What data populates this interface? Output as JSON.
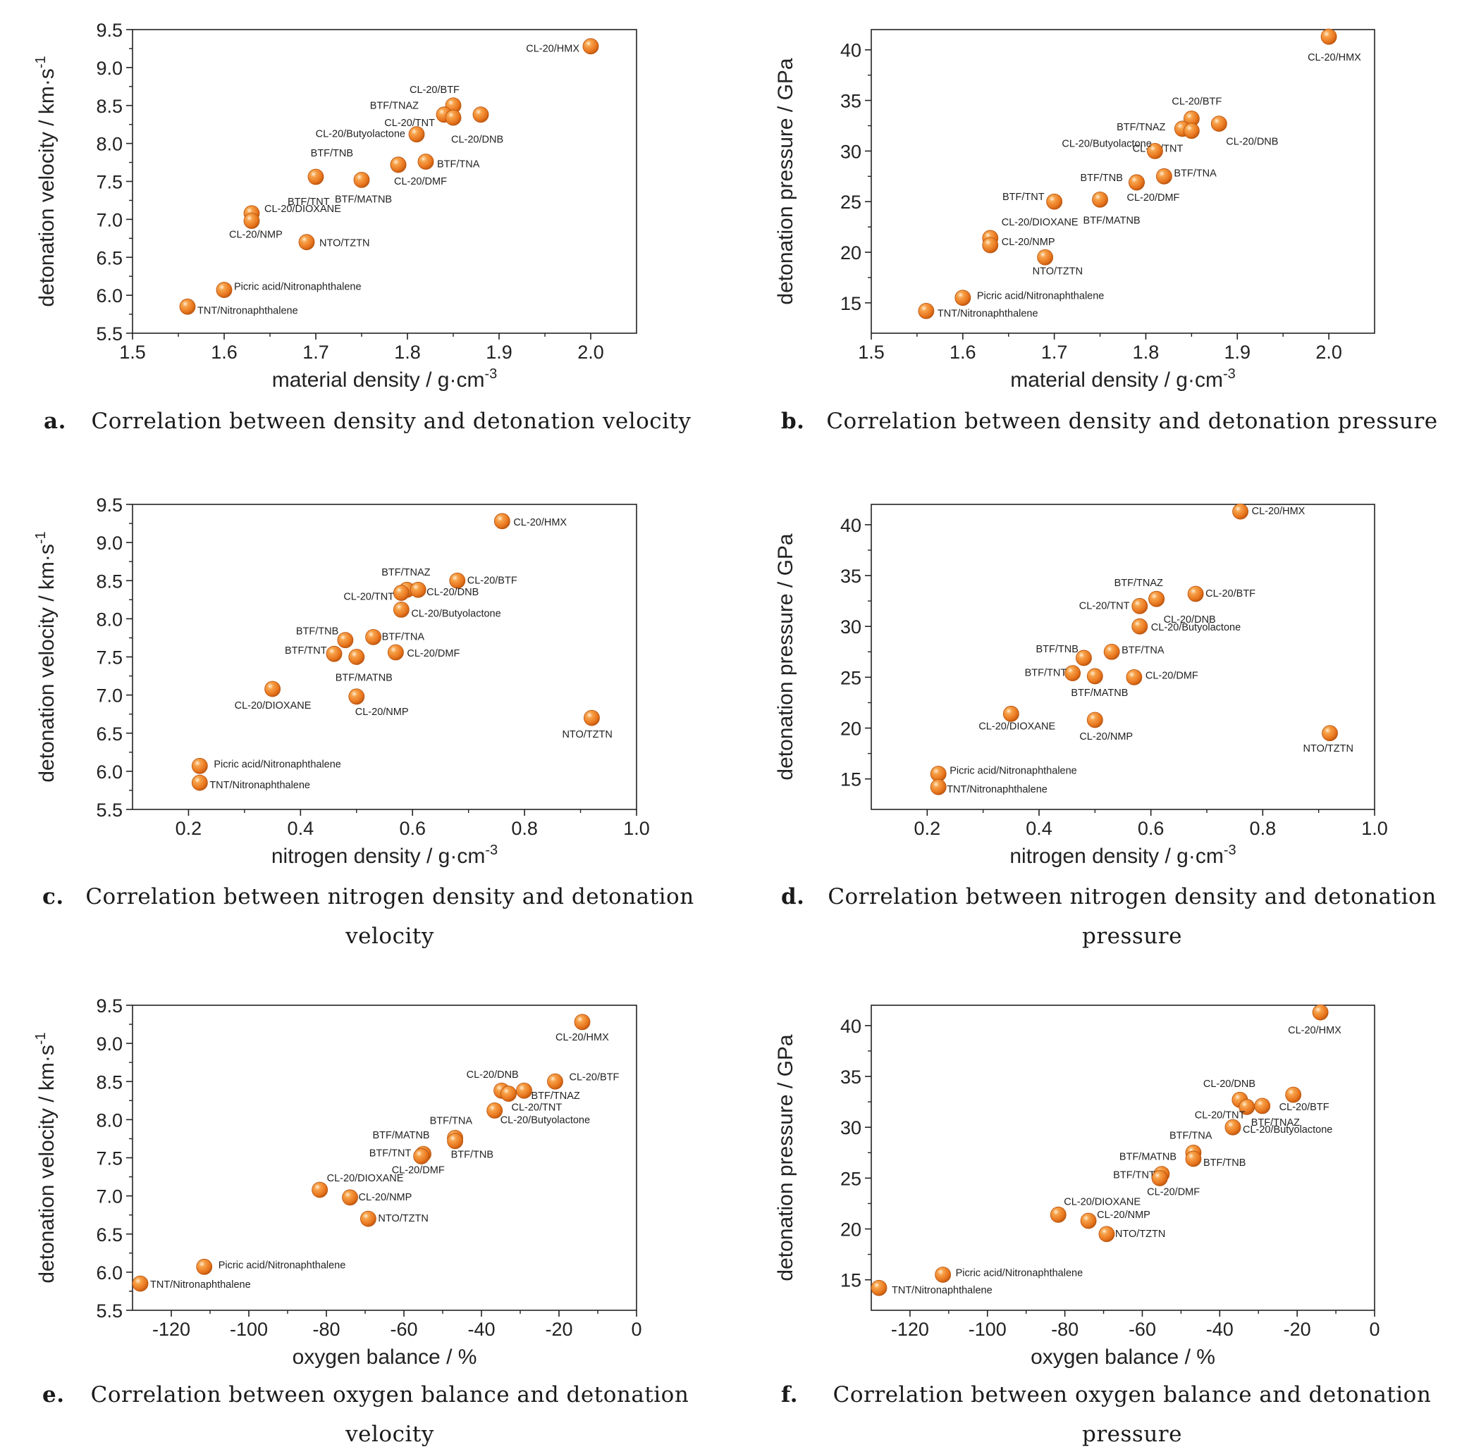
{
  "chart_data": [
    {
      "id": "a",
      "type": "scatter",
      "xlabel": "material  density / g·cm",
      "xlabel_sup": "-3",
      "ylabel": "detonation velocity / km·s",
      "ylabel_sup": "-1",
      "xlim": [
        1.5,
        2.05
      ],
      "ylim": [
        5.5,
        9.5
      ],
      "xticks": [
        "1.5",
        "1.6",
        "1.7",
        "1.8",
        "1.9",
        "2.0"
      ],
      "yticks": [
        "5.5",
        "6.0",
        "6.5",
        "7.0",
        "7.5",
        "8.0",
        "8.5",
        "9.0",
        "9.5"
      ],
      "points": [
        {
          "label": "CL-20/HMX",
          "x": 2.0,
          "y": 9.28
        },
        {
          "label": "CL-20/BTF",
          "x": 1.85,
          "y": 8.5
        },
        {
          "label": "BTF/TNAZ",
          "x": 1.84,
          "y": 8.38
        },
        {
          "label": "CL-20/TNT",
          "x": 1.85,
          "y": 8.34
        },
        {
          "label": "CL-20/DNB",
          "x": 1.88,
          "y": 8.38
        },
        {
          "label": "CL-20/Butyolactone",
          "x": 1.81,
          "y": 8.12
        },
        {
          "label": "BTF/TNB",
          "x": 1.79,
          "y": 7.72
        },
        {
          "label": "BTF/TNA",
          "x": 1.82,
          "y": 7.76
        },
        {
          "label": "CL-20/DMF",
          "x": 1.79,
          "y": 7.72
        },
        {
          "label": "BTF/TNT",
          "x": 1.7,
          "y": 7.56
        },
        {
          "label": "BTF/MATNB",
          "x": 1.75,
          "y": 7.52
        },
        {
          "label": "CL-20/DIOXANE",
          "x": 1.63,
          "y": 7.08
        },
        {
          "label": "CL-20/NMP",
          "x": 1.63,
          "y": 6.98
        },
        {
          "label": "NTO/TZTN",
          "x": 1.69,
          "y": 6.7
        },
        {
          "label": "Picric acid/Nitronaphthalene",
          "x": 1.6,
          "y": 6.07
        },
        {
          "label": "TNT/Nitronaphthalene",
          "x": 1.56,
          "y": 5.85
        }
      ]
    },
    {
      "id": "b",
      "type": "scatter",
      "xlabel": "material density / g·cm",
      "xlabel_sup": "-3",
      "ylabel": "detonation pressure / GPa",
      "ylabel_sup": "",
      "xlim": [
        1.5,
        2.05
      ],
      "ylim": [
        12,
        42
      ],
      "xticks": [
        "1.5",
        "1.6",
        "1.7",
        "1.8",
        "1.9",
        "2.0"
      ],
      "yticks": [
        "15",
        "20",
        "25",
        "30",
        "35",
        "40"
      ],
      "points": [
        {
          "label": "CL-20/HMX",
          "x": 2.0,
          "y": 41.3
        },
        {
          "label": "CL-20/BTF",
          "x": 1.85,
          "y": 33.2
        },
        {
          "label": "BTF/TNAZ",
          "x": 1.84,
          "y": 32.2
        },
        {
          "label": "CL-20/TNT",
          "x": 1.85,
          "y": 32.0
        },
        {
          "label": "CL-20/DNB",
          "x": 1.88,
          "y": 32.7
        },
        {
          "label": "CL-20/Butyolactone",
          "x": 1.81,
          "y": 30.0
        },
        {
          "label": "BTF/TNB",
          "x": 1.79,
          "y": 26.9
        },
        {
          "label": "BTF/TNA",
          "x": 1.82,
          "y": 27.5
        },
        {
          "label": "CL-20/DMF",
          "x": 1.79,
          "y": 26.9
        },
        {
          "label": "BTF/TNT",
          "x": 1.7,
          "y": 25.0
        },
        {
          "label": "BTF/MATNB",
          "x": 1.75,
          "y": 25.2
        },
        {
          "label": "CL-20/DIOXANE",
          "x": 1.63,
          "y": 21.4
        },
        {
          "label": "CL-20/NMP",
          "x": 1.63,
          "y": 20.7
        },
        {
          "label": "NTO/TZTN",
          "x": 1.69,
          "y": 19.5
        },
        {
          "label": "Picric acid/Nitronaphthalene",
          "x": 1.6,
          "y": 15.5
        },
        {
          "label": "TNT/Nitronaphthalene",
          "x": 1.56,
          "y": 14.2
        }
      ]
    },
    {
      "id": "c",
      "type": "scatter",
      "xlabel": "nitrogen density / g·cm",
      "xlabel_sup": "-3",
      "ylabel": "detonation velocity / km·s",
      "ylabel_sup": "-1",
      "xlim": [
        0.1,
        1.0
      ],
      "ylim": [
        5.5,
        9.5
      ],
      "xticks": [
        "0.2",
        "0.4",
        "0.6",
        "0.8",
        "1.0"
      ],
      "yticks": [
        "5.5",
        "6.0",
        "6.5",
        "7.0",
        "7.5",
        "8.0",
        "8.5",
        "9.0",
        "9.5"
      ],
      "points": [
        {
          "label": "CL-20/HMX",
          "x": 0.76,
          "y": 9.28
        },
        {
          "label": "BTF/TNAZ",
          "x": 0.59,
          "y": 8.38
        },
        {
          "label": "CL-20/BTF",
          "x": 0.68,
          "y": 8.5
        },
        {
          "label": "CL-20/TNT",
          "x": 0.58,
          "y": 8.34
        },
        {
          "label": "CL-20/DNB",
          "x": 0.61,
          "y": 8.38
        },
        {
          "label": "CL-20/Butyolactone",
          "x": 0.58,
          "y": 8.12
        },
        {
          "label": "BTF/TNB",
          "x": 0.48,
          "y": 7.72
        },
        {
          "label": "BTF/TNA",
          "x": 0.53,
          "y": 7.76
        },
        {
          "label": "BTF/TNT",
          "x": 0.46,
          "y": 7.54
        },
        {
          "label": "CL-20/DMF",
          "x": 0.57,
          "y": 7.56
        },
        {
          "label": "BTF/MATNB",
          "x": 0.5,
          "y": 7.5
        },
        {
          "label": "CL-20/DIOXANE",
          "x": 0.35,
          "y": 7.08
        },
        {
          "label": "CL-20/NMP",
          "x": 0.5,
          "y": 6.98
        },
        {
          "label": "NTO/TZTN",
          "x": 0.92,
          "y": 6.7
        },
        {
          "label": "Picric acid/Nitronaphthalene",
          "x": 0.22,
          "y": 6.07
        },
        {
          "label": "TNT/Nitronaphthalene",
          "x": 0.22,
          "y": 5.85
        }
      ]
    },
    {
      "id": "d",
      "type": "scatter",
      "xlabel": "nitrogen  density / g·cm",
      "xlabel_sup": "-3",
      "ylabel": "detonation pressure / GPa",
      "ylabel_sup": "",
      "xlim": [
        0.1,
        1.0
      ],
      "ylim": [
        12,
        42
      ],
      "xticks": [
        "0.2",
        "0.4",
        "0.6",
        "0.8",
        "1.0"
      ],
      "yticks": [
        "15",
        "20",
        "25",
        "30",
        "35",
        "40"
      ],
      "points": [
        {
          "label": "CL-20/HMX",
          "x": 0.76,
          "y": 41.3
        },
        {
          "label": "BTF/TNAZ",
          "x": 0.61,
          "y": 32.7
        },
        {
          "label": "CL-20/BTF",
          "x": 0.68,
          "y": 33.2
        },
        {
          "label": "CL-20/TNT",
          "x": 0.58,
          "y": 32.0
        },
        {
          "label": "CL-20/DNB",
          "x": 0.61,
          "y": 32.7
        },
        {
          "label": "CL-20/Butyolactone",
          "x": 0.58,
          "y": 30.0
        },
        {
          "label": "BTF/TNB",
          "x": 0.48,
          "y": 26.9
        },
        {
          "label": "BTF/TNA",
          "x": 0.53,
          "y": 27.5
        },
        {
          "label": "BTF/TNT",
          "x": 0.46,
          "y": 25.4
        },
        {
          "label": "CL-20/DMF",
          "x": 0.57,
          "y": 25.0
        },
        {
          "label": "BTF/MATNB",
          "x": 0.5,
          "y": 25.1
        },
        {
          "label": "CL-20/DIOXANE",
          "x": 0.35,
          "y": 21.4
        },
        {
          "label": "CL-20/NMP",
          "x": 0.5,
          "y": 20.8
        },
        {
          "label": "NTO/TZTN",
          "x": 0.92,
          "y": 19.5
        },
        {
          "label": "Picric acid/Nitronaphthalene",
          "x": 0.22,
          "y": 15.5
        },
        {
          "label": "TNT/Nitronaphthalene",
          "x": 0.22,
          "y": 14.2
        }
      ]
    },
    {
      "id": "e",
      "type": "scatter",
      "xlabel": "oxygen balance / %",
      "xlabel_sup": "",
      "ylabel": "detonation velocity / km·s",
      "ylabel_sup": "-1",
      "xlim": [
        -130,
        0
      ],
      "ylim": [
        5.5,
        9.5
      ],
      "xticks": [
        "-120",
        "-100",
        "-80",
        "-60",
        "-40",
        "-20",
        "0"
      ],
      "yticks": [
        "5.5",
        "6.0",
        "6.5",
        "7.0",
        "7.5",
        "8.0",
        "8.5",
        "9.0",
        "9.5"
      ],
      "points": [
        {
          "label": "CL-20/HMX",
          "x": -14,
          "y": 9.28
        },
        {
          "label": "CL-20/DNB",
          "x": -34.8,
          "y": 8.38
        },
        {
          "label": "CL-20/BTF",
          "x": -21,
          "y": 8.5
        },
        {
          "label": "BTF/TNAZ",
          "x": -29,
          "y": 8.38
        },
        {
          "label": "CL-20/TNT",
          "x": -33,
          "y": 8.34
        },
        {
          "label": "CL-20/Butyolactone",
          "x": -36.6,
          "y": 8.12
        },
        {
          "label": "BTF/TNA",
          "x": -46.8,
          "y": 7.76
        },
        {
          "label": "BTF/TNB",
          "x": -46.8,
          "y": 7.72
        },
        {
          "label": "BTF/MATNB",
          "x": -55,
          "y": 7.55
        },
        {
          "label": "BTF/TNT",
          "x": -55.5,
          "y": 7.52
        },
        {
          "label": "CL-20/DMF",
          "x": -55.5,
          "y": 7.52
        },
        {
          "label": "CL-20/DIOXANE",
          "x": -81.7,
          "y": 7.08
        },
        {
          "label": "CL-20/NMP",
          "x": -73.9,
          "y": 6.98
        },
        {
          "label": "NTO/TZTN",
          "x": -69.2,
          "y": 6.7
        },
        {
          "label": "Picric acid/Nitronaphthalene",
          "x": -111.5,
          "y": 6.07
        },
        {
          "label": "TNT/Nitronaphthalene",
          "x": -128,
          "y": 5.85
        }
      ]
    },
    {
      "id": "f",
      "type": "scatter",
      "xlabel": "oxygen balance / %",
      "xlabel_sup": "",
      "ylabel": "detonation pressure / GPa",
      "ylabel_sup": "",
      "xlim": [
        -130,
        0
      ],
      "ylim": [
        12,
        42
      ],
      "xticks": [
        "-120",
        "-100",
        "-80",
        "-60",
        "-40",
        "-20",
        "0"
      ],
      "yticks": [
        "15",
        "20",
        "25",
        "30",
        "35",
        "40"
      ],
      "points": [
        {
          "label": "CL-20/HMX",
          "x": -14,
          "y": 41.3
        },
        {
          "label": "CL-20/DNB",
          "x": -34.8,
          "y": 32.7
        },
        {
          "label": "CL-20/BTF",
          "x": -21,
          "y": 33.2
        },
        {
          "label": "CL-20/TNT",
          "x": -33,
          "y": 32.0
        },
        {
          "label": "BTF/TNAZ",
          "x": -29,
          "y": 32.1
        },
        {
          "label": "CL-20/Butyolactone",
          "x": -36.6,
          "y": 30.0
        },
        {
          "label": "BTF/TNA",
          "x": -46.8,
          "y": 27.5
        },
        {
          "label": "BTF/TNB",
          "x": -46.8,
          "y": 26.9
        },
        {
          "label": "BTF/MATNB",
          "x": -55,
          "y": 25.4
        },
        {
          "label": "BTF/TNT",
          "x": -55.5,
          "y": 25.0
        },
        {
          "label": "CL-20/DMF",
          "x": -55.5,
          "y": 25.0
        },
        {
          "label": "CL-20/DIOXANE",
          "x": -81.7,
          "y": 21.4
        },
        {
          "label": "CL-20/NMP",
          "x": -73.9,
          "y": 20.8
        },
        {
          "label": "NTO/TZTN",
          "x": -69.2,
          "y": 19.5
        },
        {
          "label": "Picric acid/Nitronaphthalene",
          "x": -111.5,
          "y": 15.5
        },
        {
          "label": "TNT/Nitronaphthalene",
          "x": -128,
          "y": 14.2
        }
      ]
    }
  ],
  "captions": [
    {
      "letter": "a.",
      "text": "Correlation between density and detonation velocity"
    },
    {
      "letter": "b.",
      "text": "Correlation between density and detonation pressure"
    },
    {
      "letter": "c.",
      "text": "Correlation between nitrogen density and detonation",
      "text2": "velocity"
    },
    {
      "letter": "d.",
      "text": "Correlation between nitrogen density and detonation",
      "text2": "pressure"
    },
    {
      "letter": "e.",
      "text": "Correlation between oxygen balance and detonation",
      "text2": "velocity"
    },
    {
      "letter": "f.",
      "text": "Correlation between oxygen balance and detonation",
      "text2": "pressure"
    }
  ],
  "colors": {
    "marker": "#e8761e",
    "marker_highlight": "#ffd9a8",
    "marker_edge": "#b8520c",
    "axis": "#222222"
  }
}
